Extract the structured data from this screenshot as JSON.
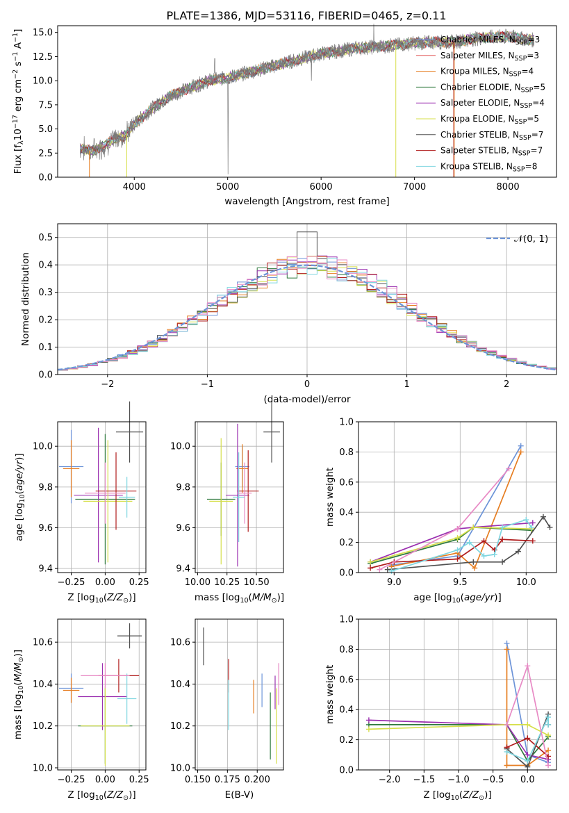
{
  "figure": {
    "title": "PLATE=1386, MJD=53116, FIBERID=0465, z=0.11"
  },
  "chart_data": [
    {
      "id": "spectrum",
      "type": "line",
      "xlabel": "wavelength [Angstrom, rest frame]",
      "ylabel": "Flux [f_λ 10^-17 erg cm^-2 s^-1 A^-1]",
      "xlim": [
        3180,
        8520
      ],
      "ylim": [
        0,
        15.7
      ],
      "xticks": [
        4000,
        5000,
        6000,
        7000,
        8000
      ],
      "yticks": [
        0.0,
        2.5,
        5.0,
        7.5,
        10.0,
        12.5,
        15.0
      ],
      "grid": false,
      "legend_position": "right",
      "continuum": [
        [
          3420,
          3.0
        ],
        [
          3550,
          2.7
        ],
        [
          3700,
          3.4
        ],
        [
          3800,
          4.0
        ],
        [
          3900,
          4.3
        ],
        [
          4000,
          5.5
        ],
        [
          4200,
          7.2
        ],
        [
          4400,
          8.5
        ],
        [
          4600,
          9.3
        ],
        [
          4800,
          10.0
        ],
        [
          5000,
          10.3
        ],
        [
          5200,
          10.8
        ],
        [
          5400,
          11.3
        ],
        [
          5600,
          11.8
        ],
        [
          5800,
          12.3
        ],
        [
          6000,
          12.8
        ],
        [
          6200,
          13.1
        ],
        [
          6400,
          13.4
        ],
        [
          6600,
          13.5
        ],
        [
          6800,
          13.7
        ],
        [
          7000,
          13.9
        ],
        [
          7200,
          14.0
        ],
        [
          7400,
          14.0
        ],
        [
          7600,
          14.3
        ],
        [
          7800,
          14.5
        ],
        [
          8000,
          14.6
        ],
        [
          8200,
          14.3
        ],
        [
          8280,
          14.2
        ]
      ],
      "series": [
        {
          "name": "Chabrier MILES, N_SSP=3",
          "color": "#6d94d8"
        },
        {
          "name": "Salpeter MILES, N_SSP=3",
          "color": "#e25a5a"
        },
        {
          "name": "Kroupa MILES, N_SSP=4",
          "color": "#e67e22"
        },
        {
          "name": "Chabrier ELODIE, N_SSP=5",
          "color": "#2f7a3e"
        },
        {
          "name": "Salpeter ELODIE, N_SSP=4",
          "color": "#9b30b0"
        },
        {
          "name": "Kroupa ELODIE, N_SSP=5",
          "color": "#d6df4a"
        },
        {
          "name": "Chabrier STELIB, N_SSP=7",
          "color": "#505050"
        },
        {
          "name": "Salpeter STELIB, N_SSP=7",
          "color": "#b01c1c"
        },
        {
          "name": "Kroupa STELIB, N_SSP=8",
          "color": "#7fd6e0"
        }
      ]
    },
    {
      "id": "residuals",
      "type": "line",
      "xlabel": "(data-model)/error",
      "ylabel": "Normed distribution",
      "xlim": [
        -2.5,
        2.5
      ],
      "ylim": [
        0,
        0.55
      ],
      "xticks": [
        -2,
        -1,
        0,
        1,
        2
      ],
      "yticks": [
        0.0,
        0.1,
        0.2,
        0.3,
        0.4,
        0.5
      ],
      "grid": true,
      "legend": "N(0,1)",
      "legend_position": "top-right",
      "histogram_bin_width": 0.1,
      "histogram_colors": [
        "#6d94d8",
        "#e67e22",
        "#2f7a3e",
        "#9b30b0",
        "#d6df4a",
        "#505050",
        "#b01c1c",
        "#7fd6e0",
        "#e88ac5"
      ]
    },
    {
      "id": "age_vs_Z",
      "type": "scatter",
      "xlabel": "Z [log10(Z/Z_sun)]",
      "ylabel": "age [log10(age/yr)]",
      "xlim": [
        -0.35,
        0.3
      ],
      "ylim": [
        9.38,
        10.12
      ],
      "xticks": [
        -0.25,
        0.0,
        0.25
      ],
      "yticks": [
        9.4,
        9.6,
        9.8,
        10.0
      ],
      "grid": true,
      "points": [
        {
          "x": -0.25,
          "y": 9.9,
          "xerr": 0.09,
          "yerr": 0.18,
          "color": "#6d94d8"
        },
        {
          "x": -0.25,
          "y": 9.89,
          "xerr": 0.06,
          "yerr": 0.14,
          "color": "#e67e22"
        },
        {
          "x": 0.0,
          "y": 9.74,
          "xerr": 0.22,
          "yerr": 0.32,
          "color": "#2f7a3e"
        },
        {
          "x": -0.05,
          "y": 9.76,
          "xerr": 0.18,
          "yerr": 0.33,
          "color": "#9b30b0"
        },
        {
          "x": 0.02,
          "y": 9.73,
          "xerr": 0.18,
          "yerr": 0.3,
          "color": "#d6df4a"
        },
        {
          "x": 0.18,
          "y": 10.07,
          "xerr": 0.1,
          "yerr": 0.15,
          "color": "#505050"
        },
        {
          "x": 0.08,
          "y": 9.78,
          "xerr": 0.15,
          "yerr": 0.19,
          "color": "#b01c1c"
        },
        {
          "x": 0.16,
          "y": 9.75,
          "xerr": 0.06,
          "yerr": 0.1,
          "color": "#7fd6e0"
        },
        {
          "x": 0.0,
          "y": 9.77,
          "xerr": 0.15,
          "yerr": 0.15,
          "color": "#e88ac5"
        }
      ]
    },
    {
      "id": "age_vs_mass",
      "type": "scatter",
      "xlabel": "mass [log10(M/M_sun)]",
      "ylabel": "",
      "xlim": [
        9.98,
        10.73
      ],
      "ylim": [
        9.38,
        10.12
      ],
      "xticks": [
        10.0,
        10.25,
        10.5
      ],
      "xtick_labels": [
        "10.00",
        "10.25",
        "10.50"
      ],
      "yticks": [
        9.4,
        9.6,
        9.8,
        10.0
      ],
      "grid": true,
      "points": [
        {
          "x": 10.38,
          "y": 9.9,
          "xerr": 0.06,
          "yerr": 0.1,
          "color": "#6d94d8"
        },
        {
          "x": 10.38,
          "y": 9.89,
          "xerr": 0.05,
          "yerr": 0.12,
          "color": "#e67e22"
        },
        {
          "x": 10.2,
          "y": 9.74,
          "xerr": 0.12,
          "yerr": 0.18,
          "color": "#2f7a3e"
        },
        {
          "x": 10.34,
          "y": 9.76,
          "xerr": 0.1,
          "yerr": 0.35,
          "color": "#9b30b0"
        },
        {
          "x": 10.2,
          "y": 9.73,
          "xerr": 0.1,
          "yerr": 0.31,
          "color": "#d6df4a"
        },
        {
          "x": 10.63,
          "y": 10.07,
          "xerr": 0.07,
          "yerr": 0.15,
          "color": "#505050"
        },
        {
          "x": 10.43,
          "y": 9.78,
          "xerr": 0.09,
          "yerr": 0.2,
          "color": "#b01c1c"
        },
        {
          "x": 10.35,
          "y": 9.75,
          "xerr": 0.05,
          "yerr": 0.22,
          "color": "#7fd6e0"
        },
        {
          "x": 10.4,
          "y": 9.77,
          "xerr": 0.06,
          "yerr": 0.15,
          "color": "#e88ac5"
        }
      ]
    },
    {
      "id": "massweight_vs_age",
      "type": "line",
      "xlabel": "age [log10(age/yr)]",
      "ylabel": "mass weight",
      "xlim": [
        8.73,
        10.23
      ],
      "ylim": [
        0,
        1.0
      ],
      "xticks": [
        9.0,
        9.5,
        10.0
      ],
      "yticks": [
        0.0,
        0.2,
        0.4,
        0.6,
        0.8,
        1.0
      ],
      "grid": true,
      "series": [
        {
          "color": "#6d94d8",
          "x": [
            8.98,
            9.48,
            9.96
          ],
          "y": [
            0.05,
            0.11,
            0.84
          ]
        },
        {
          "color": "#e67e22",
          "x": [
            8.98,
            9.48,
            9.61,
            9.96
          ],
          "y": [
            0.04,
            0.13,
            0.03,
            0.8
          ]
        },
        {
          "color": "#2f7a3e",
          "x": [
            8.82,
            9.48,
            9.6,
            10.04
          ],
          "y": [
            0.06,
            0.22,
            0.3,
            0.28
          ]
        },
        {
          "color": "#9b30b0",
          "x": [
            8.82,
            9.48,
            9.6,
            10.05
          ],
          "y": [
            0.07,
            0.29,
            0.3,
            0.33
          ]
        },
        {
          "color": "#d6df4a",
          "x": [
            8.82,
            9.48,
            9.6,
            10.04
          ],
          "y": [
            0.07,
            0.23,
            0.3,
            0.29
          ]
        },
        {
          "color": "#505050",
          "x": [
            8.95,
            9.6,
            9.82,
            9.94,
            10.13,
            10.18
          ],
          "y": [
            0.02,
            0.07,
            0.07,
            0.14,
            0.37,
            0.3
          ]
        },
        {
          "color": "#b01c1c",
          "x": [
            8.82,
            9.0,
            9.48,
            9.68,
            9.76,
            9.82,
            10.05
          ],
          "y": [
            0.03,
            0.07,
            0.09,
            0.21,
            0.15,
            0.22,
            0.21
          ]
        },
        {
          "color": "#7fd6e0",
          "x": [
            8.98,
            9.48,
            9.57,
            9.68,
            9.76,
            9.82,
            10.0,
            10.04
          ],
          "y": [
            0.01,
            0.15,
            0.2,
            0.11,
            0.12,
            0.3,
            0.35,
            0.3
          ]
        },
        {
          "color": "#e88ac5",
          "x": [
            8.89,
            9.48,
            9.87
          ],
          "y": [
            0.02,
            0.29,
            0.69
          ]
        }
      ]
    },
    {
      "id": "mass_vs_Z",
      "type": "scatter",
      "xlabel": "Z [log10(Z/Z_sun)]",
      "ylabel": "mass [log10(M/M_sun)]",
      "xlim": [
        -0.35,
        0.3
      ],
      "ylim": [
        9.99,
        10.71
      ],
      "xticks": [
        -0.25,
        0.0,
        0.25
      ],
      "yticks": [
        10.0,
        10.2,
        10.4,
        10.6
      ],
      "grid": true,
      "points": [
        {
          "x": -0.25,
          "y": 10.38,
          "xerr": 0.09,
          "yerr": 0.07,
          "color": "#6d94d8"
        },
        {
          "x": -0.25,
          "y": 10.37,
          "xerr": 0.06,
          "yerr": 0.06,
          "color": "#e67e22"
        },
        {
          "x": 0.0,
          "y": 10.2,
          "xerr": 0.2,
          "yerr": 0.18,
          "color": "#2f7a3e"
        },
        {
          "x": -0.02,
          "y": 10.34,
          "xerr": 0.18,
          "yerr": 0.16,
          "color": "#9b30b0"
        },
        {
          "x": 0.0,
          "y": 10.2,
          "xerr": 0.18,
          "yerr": 0.19,
          "color": "#d6df4a"
        },
        {
          "x": 0.18,
          "y": 10.63,
          "xerr": 0.09,
          "yerr": 0.06,
          "color": "#505050"
        },
        {
          "x": 0.1,
          "y": 10.44,
          "xerr": 0.15,
          "yerr": 0.08,
          "color": "#b01c1c"
        },
        {
          "x": 0.16,
          "y": 10.33,
          "xerr": 0.07,
          "yerr": 0.12,
          "color": "#7fd6e0"
        },
        {
          "x": 0.0,
          "y": 10.44,
          "xerr": 0.18,
          "yerr": 0.06,
          "color": "#e88ac5"
        }
      ]
    },
    {
      "id": "mass_vs_EBV",
      "type": "scatter",
      "xlabel": "E(B-V)",
      "ylabel": "",
      "xlim": [
        0.148,
        0.222
      ],
      "ylim": [
        9.99,
        10.71
      ],
      "xticks": [
        0.15,
        0.175,
        0.2
      ],
      "xtick_labels": [
        "0.150",
        "0.175",
        "0.200"
      ],
      "yticks": [
        10.0,
        10.2,
        10.4,
        10.6
      ],
      "grid": true,
      "points": [
        {
          "x": 0.204,
          "y": 10.37,
          "yerr": 0.08,
          "color": "#6d94d8"
        },
        {
          "x": 0.197,
          "y": 10.34,
          "yerr": 0.08,
          "color": "#e67e22"
        },
        {
          "x": 0.211,
          "y": 10.2,
          "yerr": 0.16,
          "color": "#2f7a3e"
        },
        {
          "x": 0.215,
          "y": 10.36,
          "yerr": 0.08,
          "color": "#9b30b0"
        },
        {
          "x": 0.216,
          "y": 10.2,
          "yerr": 0.18,
          "color": "#d6df4a"
        },
        {
          "x": 0.155,
          "y": 10.58,
          "yerr": 0.09,
          "color": "#505050"
        },
        {
          "x": 0.176,
          "y": 10.44,
          "yerr": 0.08,
          "color": "#b01c1c"
        },
        {
          "x": 0.176,
          "y": 10.3,
          "yerr": 0.12,
          "color": "#7fd6e0"
        },
        {
          "x": 0.218,
          "y": 10.4,
          "yerr": 0.1,
          "color": "#e88ac5"
        }
      ]
    },
    {
      "id": "massweight_vs_Z",
      "type": "line",
      "xlabel": "Z [log10(Z/Z_sun)]",
      "ylabel": "mass weight",
      "xlim": [
        -2.45,
        0.42
      ],
      "ylim": [
        0,
        1.0
      ],
      "xticks": [
        -2.0,
        -1.5,
        -1.0,
        -0.5,
        0.0
      ],
      "yticks": [
        0.0,
        0.2,
        0.4,
        0.6,
        0.8,
        1.0
      ],
      "grid": true,
      "series": [
        {
          "color": "#6d94d8",
          "x": [
            -0.3,
            0.0,
            0.3
          ],
          "y": [
            0.84,
            0.1,
            0.05
          ]
        },
        {
          "color": "#e67e22",
          "x": [
            -0.3,
            -0.3,
            0.0,
            0.3
          ],
          "y": [
            0.8,
            0.03,
            0.03,
            0.13
          ]
        },
        {
          "color": "#2f7a3e",
          "x": [
            -2.3,
            -0.3,
            0.0,
            0.3
          ],
          "y": [
            0.3,
            0.3,
            0.06,
            0.22
          ]
        },
        {
          "color": "#9b30b0",
          "x": [
            -2.3,
            -0.3,
            0.0,
            0.3
          ],
          "y": [
            0.33,
            0.3,
            0.1,
            0.07
          ]
        },
        {
          "color": "#d6df4a",
          "x": [
            -2.3,
            -0.3,
            0.0,
            0.3
          ],
          "y": [
            0.27,
            0.3,
            0.3,
            0.23
          ]
        },
        {
          "color": "#505050",
          "x": [
            -0.3,
            0.0,
            0.3,
            0.3
          ],
          "y": [
            0.14,
            0.02,
            0.37,
            0.3
          ]
        },
        {
          "color": "#b01c1c",
          "x": [
            -0.3,
            0.0,
            0.3
          ],
          "y": [
            0.15,
            0.21,
            0.09
          ]
        },
        {
          "color": "#7fd6e0",
          "x": [
            -0.3,
            0.0,
            0.3,
            0.3
          ],
          "y": [
            0.12,
            0.06,
            0.35,
            0.3
          ]
        },
        {
          "color": "#e88ac5",
          "x": [
            -0.3,
            0.0,
            0.3
          ],
          "y": [
            0.3,
            0.69,
            0.03
          ]
        }
      ]
    }
  ]
}
